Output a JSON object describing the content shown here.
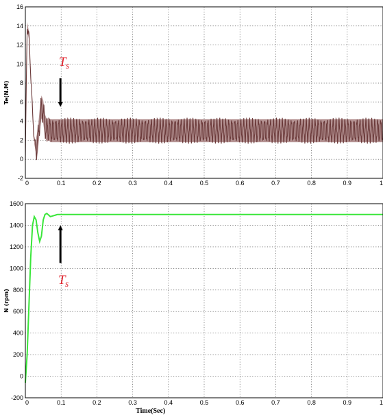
{
  "chart_data": [
    {
      "type": "line",
      "ylabel": "Te(N.M)",
      "xlim": [
        0,
        1
      ],
      "ylim": [
        -2,
        16
      ],
      "x_ticks": [
        "0",
        "0.1",
        "0.2",
        "0.3",
        "0.4",
        "0.5",
        "0.6",
        "0.7",
        "0.8",
        "0.9",
        "1"
      ],
      "y_ticks": [
        "-2",
        "0",
        "2",
        "4",
        "6",
        "8",
        "10",
        "12",
        "14",
        "16"
      ],
      "grid": true,
      "color": "#6b3a3a",
      "band_color": "#a88080",
      "series": [
        {
          "x": [
            0,
            0.005,
            0.01,
            0.015,
            0.02,
            0.025,
            0.03,
            0.035,
            0.04,
            0.045,
            0.05,
            0.055,
            0.06,
            0.065,
            0.07,
            0.08,
            0.09,
            0.1,
            0.2,
            0.3,
            0.4,
            0.5,
            0.6,
            0.7,
            0.8,
            0.9,
            1
          ],
          "y": [
            0,
            14,
            13,
            9,
            5,
            2,
            1,
            2,
            4,
            5.5,
            5,
            3.5,
            3,
            3.2,
            3,
            3,
            3,
            3,
            3,
            3,
            3,
            3,
            3,
            3,
            3,
            3,
            3
          ]
        }
      ],
      "ripple": {
        "from": 0.03,
        "amplitude": 1.2
      },
      "annotation": {
        "text": "T",
        "subscript": "s",
        "x": 0.1,
        "arrow_from": 8.5,
        "arrow_to": 5.5
      }
    },
    {
      "type": "line",
      "ylabel": "N (rpm)",
      "xlabel": "Time(Sec)",
      "xlim": [
        0,
        1
      ],
      "ylim": [
        -200,
        1600
      ],
      "x_ticks": [
        "0",
        "0.1",
        "0.2",
        "0.3",
        "0.4",
        "0.5",
        "0.6",
        "0.7",
        "0.8",
        "0.9",
        "1"
      ],
      "y_ticks": [
        "-200",
        "0",
        "200",
        "400",
        "600",
        "800",
        "1000",
        "1200",
        "1400",
        "1600"
      ],
      "grid": true,
      "color": "#39e639",
      "series": [
        {
          "x": [
            0,
            0.005,
            0.01,
            0.015,
            0.02,
            0.025,
            0.03,
            0.035,
            0.04,
            0.045,
            0.05,
            0.055,
            0.06,
            0.07,
            0.08,
            0.09,
            0.1,
            0.2,
            0.3,
            0.4,
            0.5,
            0.6,
            0.7,
            0.8,
            0.9,
            1
          ],
          "y": [
            -60,
            200,
            650,
            1100,
            1400,
            1480,
            1450,
            1330,
            1250,
            1300,
            1450,
            1500,
            1510,
            1480,
            1490,
            1500,
            1500,
            1500,
            1500,
            1500,
            1500,
            1500,
            1500,
            1500,
            1500,
            1500
          ]
        }
      ],
      "annotation": {
        "text": "T",
        "subscript": "s",
        "x": 0.1,
        "arrow_from": 1050,
        "arrow_to": 1400
      }
    }
  ]
}
